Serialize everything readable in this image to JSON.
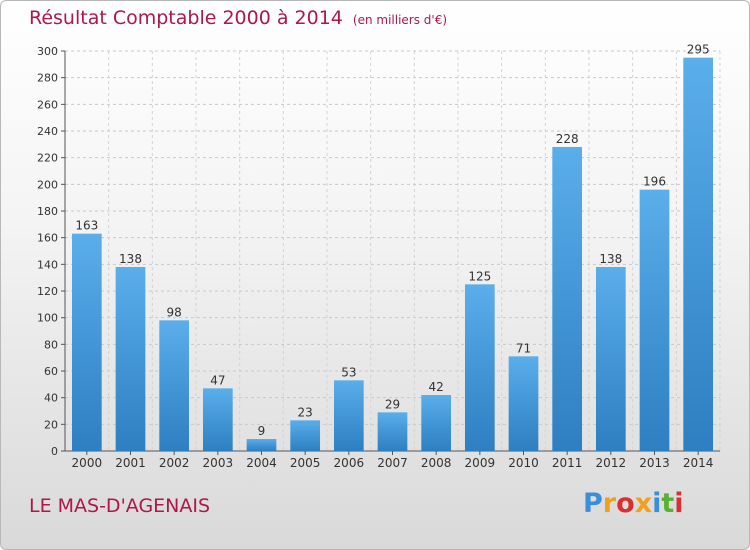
{
  "header": {
    "title": "Résultat Comptable 2000 à 2014",
    "subtitle": "(en milliers d'€)"
  },
  "footer": {
    "town": "LE MAS-D'AGENAIS",
    "logo_text": "Proxiti"
  },
  "colors": {
    "title": "#b0164a",
    "bar_light": "#5aaeea",
    "bar_dark": "#2d7fc1",
    "logo": [
      "#3a8fd8",
      "#f0a020",
      "#d83030",
      "#f0a020",
      "#3a8fd8",
      "#5ab030",
      "#d83030"
    ]
  },
  "chart_data": {
    "type": "bar",
    "categories": [
      "2000",
      "2001",
      "2002",
      "2003",
      "2004",
      "2005",
      "2006",
      "2007",
      "2008",
      "2009",
      "2010",
      "2011",
      "2012",
      "2013",
      "2014"
    ],
    "values": [
      163,
      138,
      98,
      47,
      9,
      23,
      53,
      29,
      42,
      125,
      71,
      228,
      138,
      196,
      295
    ],
    "title": "Résultat Comptable 2000 à 2014",
    "xlabel": "",
    "ylabel": "",
    "ylim": [
      0,
      300
    ],
    "yticks": [
      0,
      20,
      40,
      60,
      80,
      100,
      120,
      140,
      160,
      180,
      200,
      220,
      240,
      260,
      280,
      300
    ],
    "grid": true
  }
}
